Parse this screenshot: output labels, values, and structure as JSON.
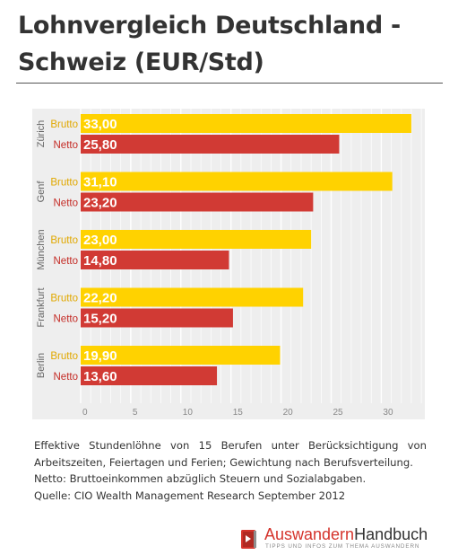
{
  "header": {
    "title_line1": "Lohnvergleich Deutschland -",
    "title_line2": "Schweiz (EUR/Std)"
  },
  "chart_data": {
    "type": "bar",
    "orientation": "horizontal",
    "categories": [
      "Zürich",
      "Genf",
      "München",
      "Frankfurt",
      "Berlin"
    ],
    "series": [
      {
        "name": "Brutto",
        "values": [
          33.0,
          31.1,
          23.0,
          22.2,
          19.9
        ],
        "labels": [
          "33,00",
          "31,10",
          "23,00",
          "22,20",
          "19,90"
        ],
        "color": "#ffd200"
      },
      {
        "name": "Netto",
        "values": [
          25.8,
          23.2,
          14.8,
          15.2,
          13.6
        ],
        "labels": [
          "25,80",
          "23,20",
          "14,80",
          "15,20",
          "13,60"
        ],
        "color": "#d13a34"
      }
    ],
    "xlim": [
      0,
      34
    ],
    "xticks": [
      "0",
      "5",
      "10",
      "15",
      "20",
      "25",
      "30"
    ],
    "grid": true,
    "background": "#eeeeee",
    "gridColor": "#ffffff"
  },
  "caption": {
    "line1": "Effektive Stundenlöhne von 15 Berufen unter Berücksichtigung von Arbeitszeiten, Feiertagen und Ferien; Gewichtung nach Berufsverteilung.",
    "line2": "Netto: Bruttoeinkommen abzüglich Steuern und Sozialabgaben.",
    "line3": "Quelle: CIO Wealth Management Research September 2012"
  },
  "logo": {
    "name_part1": "Auswandern",
    "name_part2": "Handbuch",
    "tagline": "TIPPS UND INFOS ZUM THEMA AUSWANDERN",
    "icon": "book-icon",
    "accent": "#d5342c"
  }
}
